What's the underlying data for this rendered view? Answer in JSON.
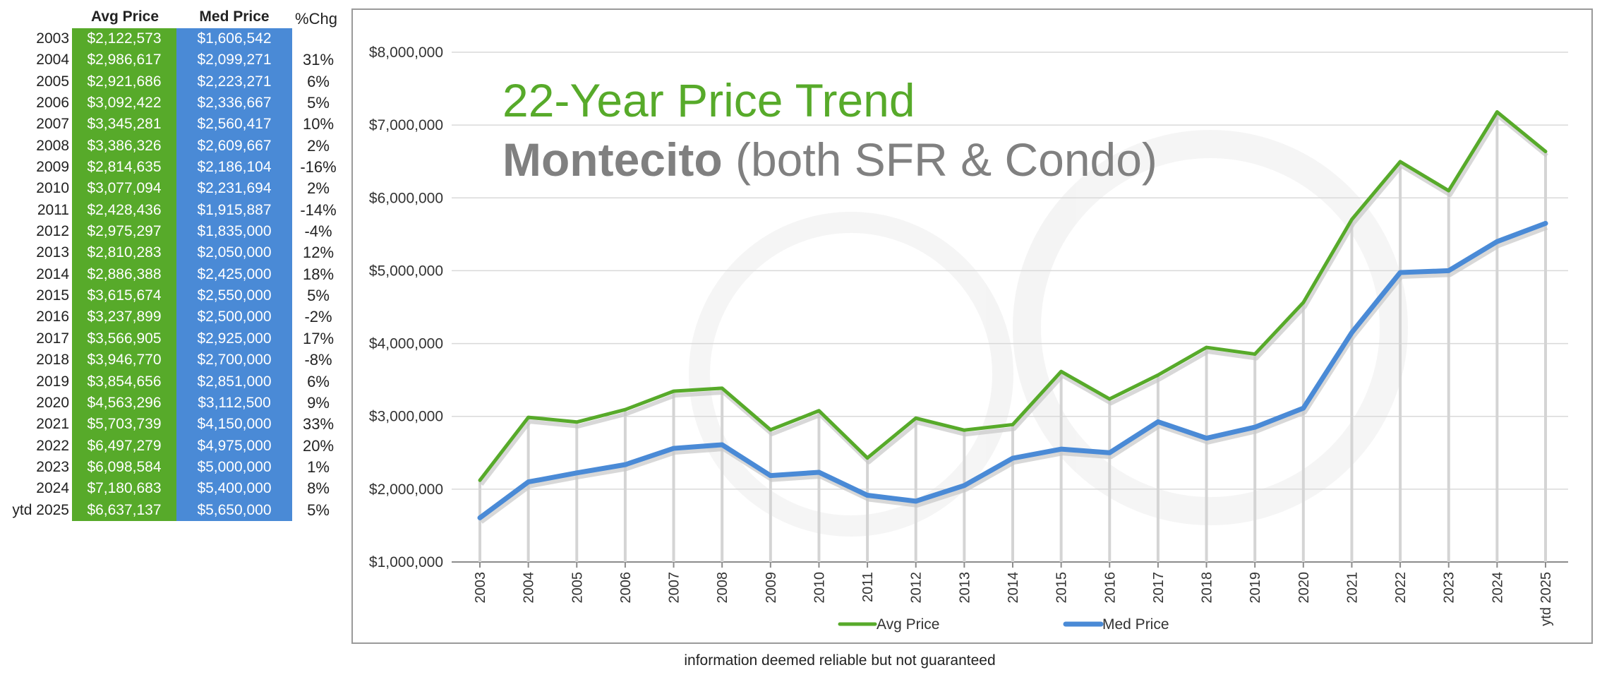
{
  "table": {
    "headers": {
      "avg": "Avg Price",
      "med": "Med Price",
      "chg": "%Chg"
    },
    "rows": [
      {
        "year": "2003",
        "avg": "$2,122,573",
        "med": "$1,606,542",
        "chg": ""
      },
      {
        "year": "2004",
        "avg": "$2,986,617",
        "med": "$2,099,271",
        "chg": "31%"
      },
      {
        "year": "2005",
        "avg": "$2,921,686",
        "med": "$2,223,271",
        "chg": "6%"
      },
      {
        "year": "2006",
        "avg": "$3,092,422",
        "med": "$2,336,667",
        "chg": "5%"
      },
      {
        "year": "2007",
        "avg": "$3,345,281",
        "med": "$2,560,417",
        "chg": "10%"
      },
      {
        "year": "2008",
        "avg": "$3,386,326",
        "med": "$2,609,667",
        "chg": "2%"
      },
      {
        "year": "2009",
        "avg": "$2,814,635",
        "med": "$2,186,104",
        "chg": "-16%"
      },
      {
        "year": "2010",
        "avg": "$3,077,094",
        "med": "$2,231,694",
        "chg": "2%"
      },
      {
        "year": "2011",
        "avg": "$2,428,436",
        "med": "$1,915,887",
        "chg": "-14%"
      },
      {
        "year": "2012",
        "avg": "$2,975,297",
        "med": "$1,835,000",
        "chg": "-4%"
      },
      {
        "year": "2013",
        "avg": "$2,810,283",
        "med": "$2,050,000",
        "chg": "12%"
      },
      {
        "year": "2014",
        "avg": "$2,886,388",
        "med": "$2,425,000",
        "chg": "18%"
      },
      {
        "year": "2015",
        "avg": "$3,615,674",
        "med": "$2,550,000",
        "chg": "5%"
      },
      {
        "year": "2016",
        "avg": "$3,237,899",
        "med": "$2,500,000",
        "chg": "-2%"
      },
      {
        "year": "2017",
        "avg": "$3,566,905",
        "med": "$2,925,000",
        "chg": "17%"
      },
      {
        "year": "2018",
        "avg": "$3,946,770",
        "med": "$2,700,000",
        "chg": "-8%"
      },
      {
        "year": "2019",
        "avg": "$3,854,656",
        "med": "$2,851,000",
        "chg": "6%"
      },
      {
        "year": "2020",
        "avg": "$4,563,296",
        "med": "$3,112,500",
        "chg": "9%"
      },
      {
        "year": "2021",
        "avg": "$5,703,739",
        "med": "$4,150,000",
        "chg": "33%"
      },
      {
        "year": "2022",
        "avg": "$6,497,279",
        "med": "$4,975,000",
        "chg": "20%"
      },
      {
        "year": "2023",
        "avg": "$6,098,584",
        "med": "$5,000,000",
        "chg": "1%"
      },
      {
        "year": "2024",
        "avg": "$7,180,683",
        "med": "$5,400,000",
        "chg": "8%"
      },
      {
        "year": "ytd 2025",
        "avg": "$6,637,137",
        "med": "$5,650,000",
        "chg": "5%"
      }
    ]
  },
  "chart_data": {
    "type": "line",
    "title": "22-Year Price Trend",
    "subtitle_bold": "Montecito",
    "subtitle_rest": " (both SFR & Condo)",
    "x": [
      "2003",
      "2004",
      "2005",
      "2006",
      "2007",
      "2008",
      "2009",
      "2010",
      "2011",
      "2012",
      "2013",
      "2014",
      "2015",
      "2016",
      "2017",
      "2018",
      "2019",
      "2020",
      "2021",
      "2022",
      "2023",
      "2024",
      "ytd 2025"
    ],
    "series": [
      {
        "name": "Avg Price",
        "color": "#57aa2a",
        "values": [
          2122573,
          2986617,
          2921686,
          3092422,
          3345281,
          3386326,
          2814635,
          3077094,
          2428436,
          2975297,
          2810283,
          2886388,
          3615674,
          3237899,
          3566905,
          3946770,
          3854656,
          4563296,
          5703739,
          6497279,
          6098584,
          7180683,
          6637137
        ]
      },
      {
        "name": "Med Price",
        "color": "#4a8ad6",
        "values": [
          1606542,
          2099271,
          2223271,
          2336667,
          2560417,
          2609667,
          2186104,
          2231694,
          1915887,
          1835000,
          2050000,
          2425000,
          2550000,
          2500000,
          2925000,
          2700000,
          2851000,
          3112500,
          4150000,
          4975000,
          5000000,
          5400000,
          5650000
        ]
      }
    ],
    "ylim": [
      1000000,
      8000000
    ],
    "y_ticks": [
      "$1,000,000",
      "$2,000,000",
      "$3,000,000",
      "$4,000,000",
      "$5,000,000",
      "$6,000,000",
      "$7,000,000",
      "$8,000,000"
    ],
    "grid": true,
    "legend_position": "bottom-center"
  },
  "footnote": "information deemed reliable but not guaranteed"
}
